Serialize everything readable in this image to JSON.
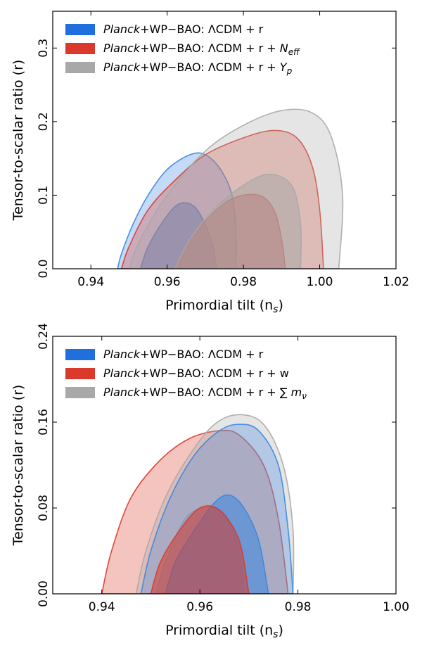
{
  "chart_data": [
    {
      "type": "contour",
      "xlabel": "Primordial tilt (n",
      "xlabel_sub": "s",
      "xlabel_end": ")",
      "ylabel": "Tensor-to-scalar ratio (r)",
      "xlim": [
        0.93,
        1.02
      ],
      "ylim": [
        0.0,
        0.35
      ],
      "xticks": [
        "0.94",
        "0.96",
        "0.98",
        "1.00",
        "1.02"
      ],
      "yticks": [
        "0.0",
        "0.1",
        "0.2",
        "0.3"
      ],
      "legend": [
        {
          "prefix": "Planck",
          "text": "+WP−BAO: ΛCDM + r",
          "suffix": "",
          "color": "#1f6fdc"
        },
        {
          "prefix": "Planck",
          "text": "+WP−BAO: ΛCDM + r + ",
          "suffix": "N_eff",
          "color": "#d93a2b"
        },
        {
          "prefix": "Planck",
          "text": "+WP−BAO: ΛCDM + r + ",
          "suffix": "Y_p",
          "color": "#a8a8a8"
        }
      ],
      "series": [
        {
          "name": "ΛCDM + r",
          "color": "#3a86e0",
          "level": "95%",
          "points": [
            [
              0.947,
              0.0
            ],
            [
              0.948,
              0.02
            ],
            [
              0.951,
              0.06
            ],
            [
              0.955,
              0.1
            ],
            [
              0.96,
              0.135
            ],
            [
              0.966,
              0.155
            ],
            [
              0.97,
              0.155
            ],
            [
              0.974,
              0.135
            ],
            [
              0.977,
              0.1
            ],
            [
              0.978,
              0.05
            ],
            [
              0.978,
              0.0
            ]
          ]
        },
        {
          "name": "ΛCDM + r",
          "color": "#3a86e0",
          "level": "68%",
          "points": [
            [
              0.953,
              0.0
            ],
            [
              0.955,
              0.03
            ],
            [
              0.959,
              0.065
            ],
            [
              0.963,
              0.088
            ],
            [
              0.967,
              0.085
            ],
            [
              0.97,
              0.06
            ],
            [
              0.972,
              0.03
            ],
            [
              0.973,
              0.0
            ]
          ]
        },
        {
          "name": "ΛCDM + r + Neff",
          "color": "#d93a2b",
          "level": "95%",
          "points": [
            [
              0.948,
              0.0
            ],
            [
              0.95,
              0.03
            ],
            [
              0.955,
              0.08
            ],
            [
              0.962,
              0.12
            ],
            [
              0.97,
              0.155
            ],
            [
              0.98,
              0.178
            ],
            [
              0.988,
              0.188
            ],
            [
              0.994,
              0.178
            ],
            [
              0.998,
              0.14
            ],
            [
              1.0,
              0.08
            ],
            [
              1.001,
              0.0
            ]
          ]
        },
        {
          "name": "ΛCDM + r + Neff",
          "color": "#d93a2b",
          "level": "68%",
          "points": [
            [
              0.962,
              0.0
            ],
            [
              0.965,
              0.03
            ],
            [
              0.97,
              0.065
            ],
            [
              0.977,
              0.095
            ],
            [
              0.984,
              0.1
            ],
            [
              0.988,
              0.08
            ],
            [
              0.99,
              0.04
            ],
            [
              0.991,
              0.0
            ]
          ]
        },
        {
          "name": "ΛCDM + r + Yp",
          "color": "#a8a8a8",
          "level": "95%",
          "points": [
            [
              0.95,
              0.0
            ],
            [
              0.953,
              0.04
            ],
            [
              0.96,
              0.1
            ],
            [
              0.97,
              0.16
            ],
            [
              0.98,
              0.195
            ],
            [
              0.99,
              0.215
            ],
            [
              0.998,
              0.212
            ],
            [
              1.003,
              0.18
            ],
            [
              1.006,
              0.1
            ],
            [
              1.005,
              0.0
            ]
          ]
        },
        {
          "name": "ΛCDM + r + Yp",
          "color": "#a8a8a8",
          "level": "68%",
          "points": [
            [
              0.962,
              0.0
            ],
            [
              0.966,
              0.04
            ],
            [
              0.973,
              0.085
            ],
            [
              0.982,
              0.12
            ],
            [
              0.988,
              0.128
            ],
            [
              0.993,
              0.11
            ],
            [
              0.995,
              0.06
            ],
            [
              0.995,
              0.0
            ]
          ]
        }
      ]
    },
    {
      "type": "contour",
      "xlabel": "Primordial tilt (n",
      "xlabel_sub": "s",
      "xlabel_end": ")",
      "ylabel": "Tensor-to-scalar ratio (r)",
      "xlim": [
        0.93,
        1.0
      ],
      "ylim": [
        0.0,
        0.24
      ],
      "xticks": [
        "0.94",
        "0.96",
        "0.98",
        "1.00"
      ],
      "yticks": [
        "0.00",
        "0.08",
        "0.16",
        "0.24"
      ],
      "legend": [
        {
          "prefix": "Planck",
          "text": "+WP−BAO: ΛCDM + r",
          "suffix": "",
          "color": "#1f6fdc"
        },
        {
          "prefix": "Planck",
          "text": "+WP−BAO: ΛCDM + r + w",
          "suffix": "",
          "color": "#d93a2b"
        },
        {
          "prefix": "Planck",
          "text": "+WP−BAO: ΛCDM + r + ∑ ",
          "suffix": "m_ν",
          "color": "#a8a8a8"
        }
      ],
      "series": [
        {
          "name": "ΛCDM + r + w",
          "color": "#d93a2b",
          "level": "95%",
          "points": [
            [
              0.94,
              0.0
            ],
            [
              0.942,
              0.04
            ],
            [
              0.946,
              0.09
            ],
            [
              0.952,
              0.125
            ],
            [
              0.958,
              0.145
            ],
            [
              0.964,
              0.152
            ],
            [
              0.968,
              0.148
            ],
            [
              0.973,
              0.12
            ],
            [
              0.976,
              0.07
            ],
            [
              0.978,
              0.0
            ]
          ]
        },
        {
          "name": "ΛCDM + r + Σmν",
          "color": "#a8a8a8",
          "level": "95%",
          "points": [
            [
              0.947,
              0.0
            ],
            [
              0.949,
              0.04
            ],
            [
              0.953,
              0.09
            ],
            [
              0.958,
              0.13
            ],
            [
              0.963,
              0.158
            ],
            [
              0.968,
              0.167
            ],
            [
              0.973,
              0.158
            ],
            [
              0.977,
              0.12
            ],
            [
              0.979,
              0.06
            ],
            [
              0.979,
              0.0
            ]
          ]
        },
        {
          "name": "ΛCDM + r + Σmν",
          "color": "#a8a8a8",
          "level": "68%",
          "points": [
            [
              0.951,
              0.0
            ],
            [
              0.953,
              0.03
            ],
            [
              0.957,
              0.07
            ],
            [
              0.961,
              0.08
            ],
            [
              0.965,
              0.075
            ],
            [
              0.968,
              0.04
            ],
            [
              0.969,
              0.0
            ]
          ]
        },
        {
          "name": "ΛCDM + r",
          "color": "#3a86e0",
          "level": "95%",
          "points": [
            [
              0.948,
              0.0
            ],
            [
              0.95,
              0.04
            ],
            [
              0.954,
              0.09
            ],
            [
              0.959,
              0.13
            ],
            [
              0.964,
              0.152
            ],
            [
              0.968,
              0.158
            ],
            [
              0.972,
              0.152
            ],
            [
              0.976,
              0.12
            ],
            [
              0.978,
              0.06
            ],
            [
              0.979,
              0.0
            ]
          ]
        },
        {
          "name": "ΛCDM + r",
          "color": "#3a86e0",
          "level": "68%",
          "points": [
            [
              0.953,
              0.0
            ],
            [
              0.955,
              0.03
            ],
            [
              0.959,
              0.06
            ],
            [
              0.963,
              0.085
            ],
            [
              0.966,
              0.092
            ],
            [
              0.969,
              0.08
            ],
            [
              0.972,
              0.05
            ],
            [
              0.974,
              0.0
            ]
          ]
        },
        {
          "name": "ΛCDM + r + w",
          "color": "#d93a2b",
          "level": "68%",
          "points": [
            [
              0.95,
              0.0
            ],
            [
              0.952,
              0.03
            ],
            [
              0.956,
              0.06
            ],
            [
              0.96,
              0.08
            ],
            [
              0.964,
              0.078
            ],
            [
              0.968,
              0.05
            ],
            [
              0.97,
              0.0
            ]
          ]
        }
      ]
    }
  ]
}
